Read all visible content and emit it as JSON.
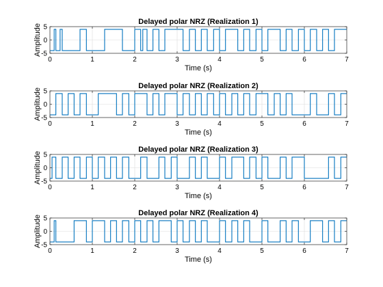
{
  "figure": {
    "background": "#ffffff",
    "axes_color": "#262626",
    "grid_color": "#dcdcdc",
    "line_color": "#0072bd"
  },
  "chart_data": [
    {
      "type": "line",
      "title": "Delayed polar NRZ (Realization 1)",
      "xlabel": "Time (s)",
      "ylabel": "Amplitude",
      "xlim": [
        0,
        7
      ],
      "ylim": [
        -5,
        5
      ],
      "xticks": [
        0,
        1,
        2,
        3,
        4,
        5,
        6,
        7
      ],
      "yticks": [
        -5,
        0,
        5
      ],
      "grid": true,
      "amplitude": 4,
      "levels": [
        -4,
        4
      ],
      "series": [
        {
          "x": [
            0,
            0.1,
            0.14,
            0.24,
            0.29,
            0.71,
            0.86,
            1.29,
            1.71,
            2.0,
            2.14,
            2.19,
            2.29,
            2.43,
            2.57,
            2.71,
            3.14,
            3.29,
            3.43,
            3.57,
            3.71,
            3.86,
            4.0,
            4.14,
            4.43,
            4.57,
            4.71,
            4.86,
            5.0,
            5.14,
            5.43,
            5.57,
            5.71,
            5.86,
            6.0,
            6.14,
            6.29,
            6.43,
            6.57,
            6.71,
            7.0
          ],
          "y": [
            -4,
            4,
            -4,
            4,
            -4,
            4,
            -4,
            4,
            -4,
            4,
            -4,
            4,
            -4,
            4,
            -4,
            4,
            -4,
            4,
            -4,
            4,
            -4,
            4,
            -4,
            4,
            -4,
            4,
            -4,
            4,
            -4,
            4,
            -4,
            4,
            -4,
            4,
            -4,
            4,
            -4,
            4,
            -4,
            4,
            -4
          ]
        }
      ]
    },
    {
      "type": "line",
      "title": "Delayed polar NRZ (Realization 2)",
      "xlabel": "Time (s)",
      "ylabel": "Amplitude",
      "xlim": [
        0,
        7
      ],
      "ylim": [
        -5,
        5
      ],
      "xticks": [
        0,
        1,
        2,
        3,
        4,
        5,
        6,
        7
      ],
      "yticks": [
        -5,
        0,
        5
      ],
      "grid": true,
      "amplitude": 4,
      "levels": [
        -4,
        4
      ],
      "series": [
        {
          "x": [
            0,
            0.14,
            0.29,
            0.43,
            0.57,
            0.71,
            0.86,
            1.14,
            1.57,
            1.71,
            1.86,
            2.0,
            2.29,
            2.43,
            2.57,
            2.71,
            3.0,
            3.14,
            3.29,
            3.43,
            3.57,
            3.71,
            3.86,
            4.0,
            4.14,
            4.29,
            4.43,
            4.57,
            4.71,
            4.86,
            5.14,
            5.29,
            5.43,
            5.57,
            5.71,
            6.14,
            6.29,
            6.57,
            6.71,
            6.86,
            7.0
          ],
          "y": [
            -4,
            4,
            -4,
            4,
            -4,
            4,
            -4,
            4,
            -4,
            4,
            -4,
            4,
            -4,
            4,
            -4,
            4,
            -4,
            4,
            -4,
            4,
            -4,
            4,
            -4,
            4,
            -4,
            4,
            -4,
            4,
            -4,
            4,
            -4,
            4,
            -4,
            4,
            -4,
            4,
            -4,
            4,
            -4,
            4,
            -4
          ]
        }
      ]
    },
    {
      "type": "line",
      "title": "Delayed polar NRZ (Realization 3)",
      "xlabel": "Time (s)",
      "ylabel": "Amplitude",
      "xlim": [
        0,
        7
      ],
      "ylim": [
        -5,
        5
      ],
      "xticks": [
        0,
        1,
        2,
        3,
        4,
        5,
        6,
        7
      ],
      "yticks": [
        -5,
        0,
        5
      ],
      "grid": true,
      "amplitude": 4,
      "levels": [
        -4,
        4
      ],
      "series": [
        {
          "x": [
            0,
            0.05,
            0.14,
            0.29,
            0.43,
            0.57,
            0.71,
            0.86,
            1.0,
            1.14,
            1.29,
            1.43,
            1.57,
            1.71,
            1.86,
            2.14,
            2.29,
            2.57,
            2.71,
            2.86,
            3.0,
            3.29,
            3.43,
            3.57,
            3.71,
            4.0,
            4.14,
            4.29,
            4.57,
            4.71,
            4.86,
            5.0,
            5.14,
            5.43,
            5.57,
            5.71,
            6.0,
            6.57,
            6.71,
            6.86,
            7.0
          ],
          "y": [
            -4,
            4,
            -4,
            4,
            -4,
            4,
            -4,
            4,
            -4,
            4,
            -4,
            4,
            -4,
            4,
            -4,
            4,
            -4,
            4,
            -4,
            4,
            -4,
            4,
            -4,
            4,
            -4,
            4,
            -4,
            4,
            -4,
            4,
            -4,
            4,
            -4,
            4,
            -4,
            4,
            -4,
            4,
            -4,
            4,
            -4
          ]
        }
      ]
    },
    {
      "type": "line",
      "title": "Delayed polar NRZ (Realization 4)",
      "xlabel": "Time (s)",
      "ylabel": "Amplitude",
      "xlim": [
        0,
        7
      ],
      "ylim": [
        -5,
        5
      ],
      "xticks": [
        0,
        1,
        2,
        3,
        4,
        5,
        6,
        7
      ],
      "yticks": [
        -5,
        0,
        5
      ],
      "grid": true,
      "amplitude": 4,
      "levels": [
        -4,
        4
      ],
      "series": [
        {
          "x": [
            0,
            0.1,
            0.14,
            0.57,
            0.86,
            1.0,
            1.29,
            1.43,
            1.57,
            1.71,
            1.86,
            2.0,
            2.14,
            2.29,
            2.43,
            2.57,
            2.86,
            3.0,
            3.14,
            3.29,
            3.43,
            3.57,
            3.71,
            4.0,
            4.14,
            4.29,
            4.43,
            4.57,
            4.71,
            5.0,
            5.14,
            5.43,
            5.57,
            5.71,
            5.86,
            6.14,
            6.43,
            6.57,
            6.71,
            6.86,
            7.0
          ],
          "y": [
            -4,
            4,
            -4,
            4,
            -4,
            4,
            -4,
            4,
            -4,
            4,
            -4,
            4,
            -4,
            4,
            -4,
            4,
            -4,
            4,
            -4,
            4,
            -4,
            4,
            -4,
            4,
            -4,
            4,
            -4,
            4,
            -4,
            4,
            -4,
            4,
            -4,
            4,
            -4,
            4,
            -4,
            4,
            -4,
            4,
            -4
          ]
        }
      ]
    }
  ]
}
